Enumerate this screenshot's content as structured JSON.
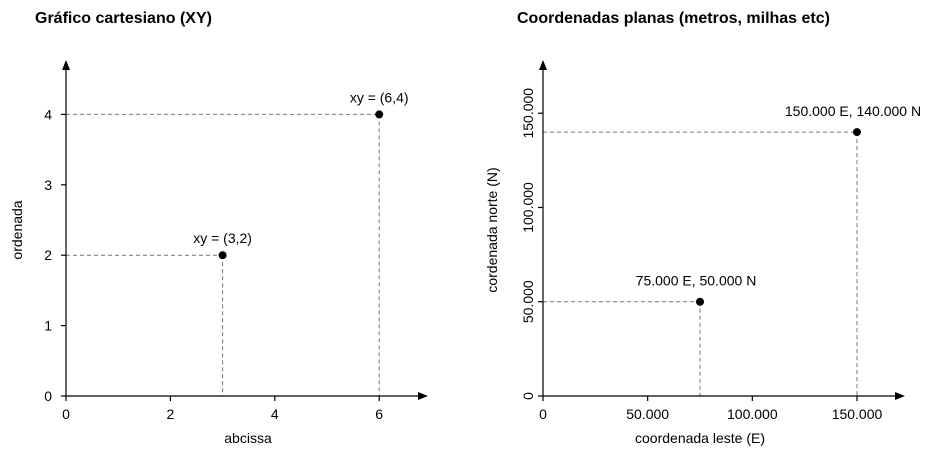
{
  "chart_data": [
    {
      "type": "scatter",
      "title": "Gráfico cartesiano (XY)",
      "xlabel": "abcissa",
      "ylabel": "ordenada",
      "xlim": [
        0,
        7.2
      ],
      "ylim": [
        0,
        4.75
      ],
      "x_ticks": [
        0,
        2,
        4,
        6
      ],
      "x_tick_labels": [
        "0",
        "2",
        "4",
        "6"
      ],
      "y_ticks": [
        0,
        1,
        2,
        3,
        4
      ],
      "y_tick_labels": [
        "0",
        "1",
        "2",
        "3",
        "4"
      ],
      "y_tick_rotated": false,
      "grid": false,
      "points": [
        {
          "x": 3,
          "y": 2,
          "label": "xy = (3,2)"
        },
        {
          "x": 6,
          "y": 4,
          "label": "xy = (6,4)"
        }
      ]
    },
    {
      "type": "scatter",
      "title": "Coordenadas planas (metros, milhas etc)",
      "xlabel": "coordenada leste (E)",
      "ylabel": "cordenada norte (N)",
      "xlim": [
        0,
        180000
      ],
      "ylim": [
        0,
        160000
      ],
      "x_ticks": [
        0,
        50000,
        100000,
        150000
      ],
      "x_tick_labels": [
        "0",
        "50.000",
        "100.000",
        "150.000"
      ],
      "y_ticks": [
        0,
        50000,
        100000,
        150000
      ],
      "y_tick_labels": [
        "0",
        "50.000",
        "100.000",
        "150.000"
      ],
      "y_tick_rotated": true,
      "grid": false,
      "points": [
        {
          "x": 75000,
          "y": 50000,
          "label": "75.000 E, 50.000 N"
        },
        {
          "x": 150000,
          "y": 140000,
          "label": "150.000 E, 140.000 N"
        }
      ]
    }
  ]
}
